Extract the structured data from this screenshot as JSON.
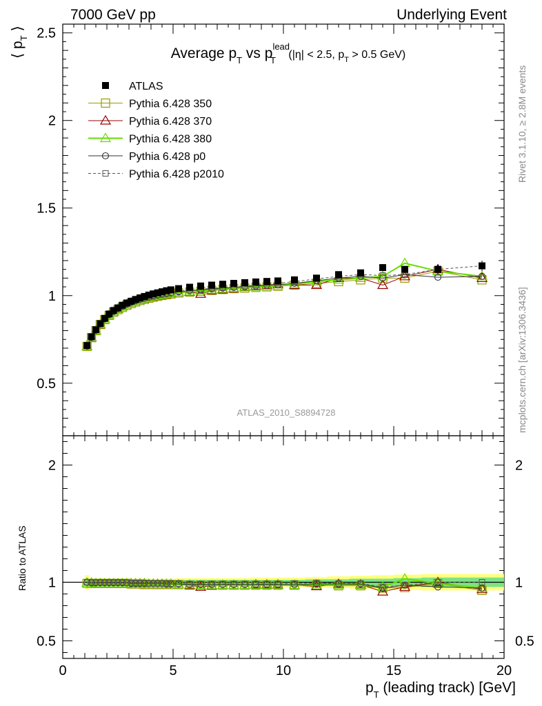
{
  "header": {
    "left": "7000 GeV pp",
    "right": "Underlying Event"
  },
  "side_labels": {
    "rivet": "Rivet 3.1.10, ≥ 2.8M events",
    "mcplots": "mcplots.cern.ch [arXiv:1306.3436]"
  },
  "watermark": "ATLAS_2010_S8894728",
  "colors": {
    "atlas": "#000000",
    "p350": "#999900",
    "p370": "#990000",
    "p380": "#66dd00",
    "p0": "#333333",
    "p2010": "#555555",
    "band_outer": "#ffff66",
    "band_inner": "#66dd88"
  },
  "chart_data": [
    {
      "type": "scatter",
      "panel": "main",
      "title": "Average p_T vs p_T^lead (|η| < 2.5, p_T > 0.5 GeV)",
      "title_parts": {
        "main": "Average p",
        "sub1": "T",
        "vs": " vs p",
        "sup2": "lead",
        "sub2": "T",
        "cuts_a": " (|η| < 2.5, p",
        "cuts_sub": "T",
        "cuts_b": " > 0.5 GeV)"
      },
      "ylabel": "⟨ p_T ⟩",
      "ylabel_parts": {
        "open": "⟨ p",
        "sub": "T",
        "close": " ⟩"
      },
      "xlim": [
        0,
        20
      ],
      "ylim": [
        0.2,
        2.55
      ],
      "y_ticks": [
        0.5,
        1,
        1.5,
        2,
        2.5
      ],
      "y_tick_labels": [
        "0.5",
        "1",
        "1.5",
        "2",
        "2.5"
      ],
      "legend_position": "top-left",
      "x": [
        1.1,
        1.3,
        1.5,
        1.7,
        1.9,
        2.1,
        2.3,
        2.5,
        2.7,
        2.9,
        3.1,
        3.3,
        3.5,
        3.7,
        3.9,
        4.1,
        4.3,
        4.5,
        4.7,
        4.9,
        5.25,
        5.75,
        6.25,
        6.75,
        7.25,
        7.75,
        8.25,
        8.75,
        9.25,
        9.75,
        10.5,
        11.5,
        12.5,
        13.5,
        14.5,
        15.5,
        17.0,
        19.0
      ],
      "series": [
        {
          "name": "ATLAS",
          "key": "atlas",
          "marker": "filled-square",
          "values": [
            0.715,
            0.765,
            0.805,
            0.84,
            0.87,
            0.895,
            0.915,
            0.93,
            0.945,
            0.958,
            0.968,
            0.978,
            0.987,
            0.995,
            1.003,
            1.01,
            1.016,
            1.022,
            1.028,
            1.033,
            1.04,
            1.048,
            1.055,
            1.06,
            1.065,
            1.07,
            1.074,
            1.078,
            1.081,
            1.084,
            1.09,
            1.1,
            1.12,
            1.13,
            1.16,
            1.15,
            1.15,
            1.17
          ],
          "errors": [
            0.005,
            0.005,
            0.005,
            0.005,
            0.005,
            0.005,
            0.005,
            0.005,
            0.005,
            0.005,
            0.005,
            0.005,
            0.005,
            0.005,
            0.005,
            0.005,
            0.005,
            0.005,
            0.005,
            0.005,
            0.006,
            0.006,
            0.006,
            0.007,
            0.007,
            0.008,
            0.008,
            0.009,
            0.009,
            0.01,
            0.01,
            0.012,
            0.014,
            0.016,
            0.02,
            0.02,
            0.03,
            0.03
          ]
        },
        {
          "name": "Pythia 6.428 350",
          "key": "p350",
          "marker": "open-square",
          "line": "solid",
          "values": [
            0.71,
            0.76,
            0.8,
            0.835,
            0.863,
            0.887,
            0.905,
            0.92,
            0.933,
            0.945,
            0.955,
            0.964,
            0.972,
            0.979,
            0.985,
            0.991,
            0.996,
            1.001,
            1.005,
            1.009,
            1.015,
            1.02,
            1.025,
            1.03,
            1.035,
            1.04,
            1.043,
            1.047,
            1.05,
            1.053,
            1.06,
            1.07,
            1.08,
            1.09,
            1.1,
            1.1,
            1.14,
            1.09
          ],
          "ratio": [
            0.99,
            0.99,
            0.99,
            0.99,
            0.99,
            0.99,
            0.99,
            0.99,
            0.99,
            0.99,
            0.985,
            0.985,
            0.985,
            0.98,
            0.98,
            0.98,
            0.98,
            0.98,
            0.98,
            0.98,
            0.98,
            0.975,
            0.975,
            0.975,
            0.975,
            0.975,
            0.975,
            0.975,
            0.975,
            0.975,
            0.975,
            0.975,
            0.97,
            0.97,
            0.95,
            0.955,
            0.99,
            0.93
          ]
        },
        {
          "name": "Pythia 6.428 370",
          "key": "p370",
          "marker": "open-triangle",
          "line": "solid",
          "values": [
            0.71,
            0.76,
            0.8,
            0.835,
            0.865,
            0.889,
            0.908,
            0.923,
            0.937,
            0.949,
            0.959,
            0.968,
            0.976,
            0.983,
            0.99,
            0.995,
            1.0,
            1.005,
            1.009,
            1.013,
            1.018,
            1.022,
            1.01,
            1.03,
            1.035,
            1.04,
            1.05,
            1.055,
            1.06,
            1.065,
            1.06,
            1.06,
            1.1,
            1.1,
            1.06,
            1.11,
            1.15,
            1.1
          ],
          "ratio": [
            0.995,
            0.995,
            0.99,
            0.99,
            0.99,
            0.99,
            0.99,
            0.99,
            0.99,
            0.99,
            0.99,
            0.99,
            0.99,
            0.99,
            0.985,
            0.985,
            0.985,
            0.985,
            0.985,
            0.985,
            0.98,
            0.975,
            0.96,
            0.97,
            0.975,
            0.975,
            0.975,
            0.98,
            0.98,
            0.98,
            0.975,
            0.965,
            0.985,
            0.98,
            0.92,
            0.96,
            1.0,
            0.94
          ]
        },
        {
          "name": "Pythia 6.428 380",
          "key": "p380",
          "marker": "open-triangle",
          "line": "solid",
          "width": 2,
          "values": [
            0.71,
            0.76,
            0.8,
            0.836,
            0.865,
            0.889,
            0.908,
            0.924,
            0.937,
            0.949,
            0.96,
            0.969,
            0.977,
            0.984,
            0.99,
            0.996,
            1.001,
            1.006,
            1.01,
            1.014,
            1.019,
            1.024,
            1.029,
            1.034,
            1.039,
            1.043,
            1.047,
            1.05,
            1.053,
            1.056,
            1.065,
            1.08,
            1.09,
            1.1,
            1.11,
            1.185,
            1.14,
            1.11
          ],
          "ratio": [
            0.995,
            0.995,
            0.99,
            0.99,
            0.99,
            0.99,
            0.99,
            0.99,
            0.99,
            0.99,
            0.99,
            0.99,
            0.99,
            0.99,
            0.985,
            0.985,
            0.985,
            0.985,
            0.985,
            0.985,
            0.98,
            0.98,
            0.975,
            0.975,
            0.975,
            0.975,
            0.975,
            0.975,
            0.975,
            0.975,
            0.975,
            0.98,
            0.975,
            0.975,
            0.96,
            1.03,
            0.99,
            0.95
          ]
        },
        {
          "name": "Pythia 6.428 p0",
          "key": "p0",
          "marker": "open-circle",
          "line": "solid",
          "values": [
            0.712,
            0.762,
            0.802,
            0.838,
            0.867,
            0.891,
            0.91,
            0.926,
            0.94,
            0.952,
            0.962,
            0.971,
            0.979,
            0.986,
            0.992,
            0.998,
            1.003,
            1.008,
            1.012,
            1.016,
            1.022,
            1.028,
            1.033,
            1.038,
            1.043,
            1.047,
            1.051,
            1.055,
            1.059,
            1.062,
            1.07,
            1.085,
            1.1,
            1.11,
            1.1,
            1.12,
            1.105,
            1.11
          ],
          "ratio": [
            1.0,
            0.995,
            0.995,
            0.995,
            0.995,
            0.995,
            0.995,
            0.995,
            0.995,
            0.995,
            0.99,
            0.99,
            0.99,
            0.99,
            0.99,
            0.99,
            0.99,
            0.99,
            0.985,
            0.985,
            0.985,
            0.98,
            0.98,
            0.98,
            0.98,
            0.98,
            0.98,
            0.98,
            0.98,
            0.98,
            0.98,
            0.985,
            0.985,
            0.985,
            0.95,
            0.975,
            0.96,
            0.95
          ]
        },
        {
          "name": "Pythia 6.428 p2010",
          "key": "p2010",
          "marker": "open-square-small",
          "line": "dashed",
          "values": [
            0.713,
            0.763,
            0.804,
            0.84,
            0.869,
            0.893,
            0.912,
            0.928,
            0.942,
            0.954,
            0.964,
            0.973,
            0.981,
            0.988,
            0.994,
            1.0,
            1.005,
            1.01,
            1.014,
            1.018,
            1.025,
            1.031,
            1.036,
            1.041,
            1.046,
            1.05,
            1.055,
            1.06,
            1.065,
            1.07,
            1.08,
            1.095,
            1.11,
            1.12,
            1.115,
            1.12,
            1.15,
            1.17
          ],
          "ratio": [
            1.0,
            1.0,
            1.0,
            1.0,
            1.0,
            1.0,
            1.0,
            1.0,
            1.0,
            0.995,
            0.995,
            0.995,
            0.995,
            0.995,
            0.99,
            0.99,
            0.99,
            0.99,
            0.99,
            0.99,
            0.99,
            0.985,
            0.985,
            0.985,
            0.985,
            0.985,
            0.985,
            0.985,
            0.985,
            0.985,
            0.99,
            0.995,
            0.99,
            0.99,
            0.96,
            0.975,
            1.0,
            1.0
          ]
        }
      ]
    },
    {
      "type": "line",
      "panel": "ratio",
      "ylabel": "Ratio to ATLAS",
      "xlabel": "p_T (leading track) [GeV]",
      "xlabel_parts": {
        "main": "p",
        "sub": "T",
        "rest": " (leading track) [GeV]"
      },
      "xlim": [
        0,
        20
      ],
      "ylim": [
        0.35,
        2.25
      ],
      "x_ticks": [
        0,
        5,
        10,
        15,
        20
      ],
      "x_tick_labels": [
        "0",
        "5",
        "10",
        "15",
        "20"
      ],
      "y_ticks": [
        0.5,
        1,
        2
      ],
      "y_tick_labels": [
        "0.5",
        "1",
        "2"
      ],
      "band_inner": [
        0.02,
        0.02,
        0.02,
        0.02,
        0.02,
        0.02,
        0.02,
        0.02,
        0.02,
        0.02,
        0.02,
        0.02,
        0.02,
        0.02,
        0.02,
        0.02,
        0.02,
        0.02,
        0.02,
        0.02,
        0.02,
        0.02,
        0.02,
        0.02,
        0.02,
        0.02,
        0.02,
        0.02,
        0.02,
        0.02,
        0.02,
        0.025,
        0.025,
        0.03,
        0.03,
        0.035,
        0.04,
        0.04
      ],
      "band_outer": [
        0.06,
        0.03,
        0.03,
        0.03,
        0.03,
        0.03,
        0.03,
        0.03,
        0.03,
        0.03,
        0.03,
        0.03,
        0.03,
        0.03,
        0.03,
        0.03,
        0.03,
        0.03,
        0.03,
        0.03,
        0.035,
        0.035,
        0.035,
        0.035,
        0.035,
        0.035,
        0.035,
        0.04,
        0.04,
        0.04,
        0.04,
        0.045,
        0.05,
        0.055,
        0.06,
        0.065,
        0.07,
        0.07
      ]
    }
  ]
}
